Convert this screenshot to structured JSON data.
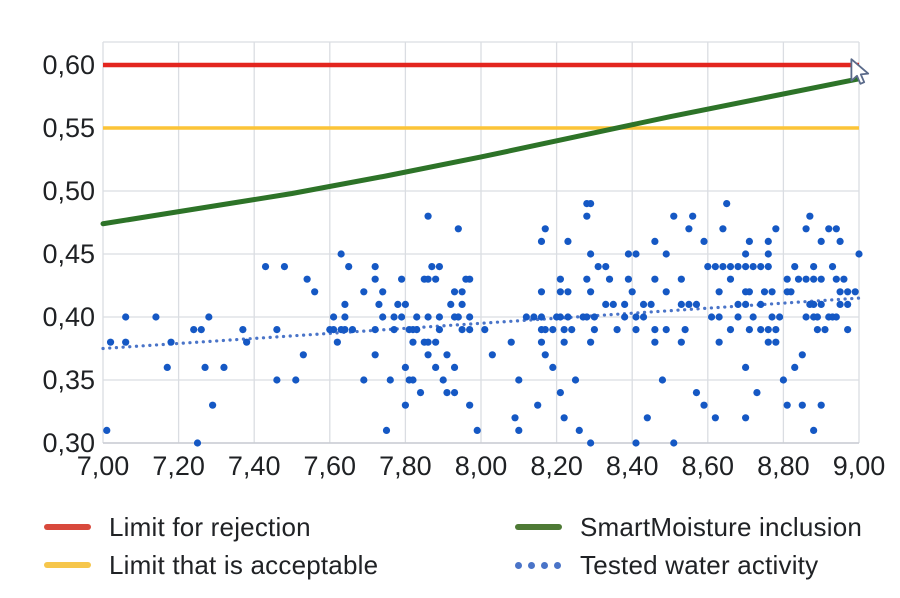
{
  "chart_data": {
    "type": "scatter",
    "title": "",
    "xlabel": "",
    "ylabel": "",
    "grid": true,
    "x_axis": {
      "min": 7.0,
      "max": 9.0,
      "tick_step": 0.2,
      "tick_values": [
        7.0,
        7.2,
        7.4,
        7.6,
        7.8,
        8.0,
        8.2,
        8.4,
        8.6,
        8.8,
        9.0
      ],
      "tick_labels": [
        "7,00",
        "7,20",
        "7,40",
        "7,60",
        "7,80",
        "8,00",
        "8,20",
        "8,40",
        "8,60",
        "8,80",
        "9,00"
      ]
    },
    "y_axis": {
      "min": 0.3,
      "max": 0.62,
      "tick_step": 0.05,
      "tick_values": [
        0.3,
        0.35,
        0.4,
        0.45,
        0.5,
        0.55,
        0.6
      ],
      "tick_labels": [
        "0,30",
        "0,35",
        "0,40",
        "0,45",
        "0,50",
        "0,55",
        "0,60"
      ]
    },
    "series": [
      {
        "name": "Limit for rejection",
        "type": "hline",
        "value": 0.6,
        "color": "#e3261f",
        "stroke_width": 4.5
      },
      {
        "name": "Limit that is acceptable",
        "type": "hline",
        "value": 0.55,
        "color": "#fcc437",
        "stroke_width": 3.5
      },
      {
        "name": "SmartMoisture inclusion",
        "type": "line",
        "color": "#2d7328",
        "stroke_width": 5,
        "points": [
          [
            7.0,
            0.474
          ],
          [
            7.25,
            0.486
          ],
          [
            7.5,
            0.498
          ],
          [
            7.75,
            0.512
          ],
          [
            8.0,
            0.527
          ],
          [
            8.25,
            0.543
          ],
          [
            8.5,
            0.559
          ],
          [
            8.75,
            0.574
          ],
          [
            9.0,
            0.589
          ]
        ]
      },
      {
        "name": "Tested water activity (trend line)",
        "type": "dotted-line",
        "color": "#4a74c8",
        "stroke_width": 3.2,
        "points": [
          [
            7.0,
            0.375
          ],
          [
            9.0,
            0.415
          ]
        ]
      },
      {
        "name": "Tested water activity",
        "type": "scatter",
        "color": "#1558c4",
        "marker_radius": 3.6,
        "points": [
          [
            7.43,
            0.44
          ],
          [
            7.48,
            0.44
          ],
          [
            7.06,
            0.4
          ],
          [
            7.14,
            0.4
          ],
          [
            7.28,
            0.4
          ],
          [
            7.24,
            0.39
          ],
          [
            7.26,
            0.39
          ],
          [
            7.37,
            0.39
          ],
          [
            7.46,
            0.39
          ],
          [
            7.02,
            0.38
          ],
          [
            7.06,
            0.38
          ],
          [
            7.18,
            0.38
          ],
          [
            7.38,
            0.38
          ],
          [
            7.17,
            0.36
          ],
          [
            7.27,
            0.36
          ],
          [
            7.32,
            0.36
          ],
          [
            7.46,
            0.35
          ],
          [
            7.29,
            0.33
          ],
          [
            7.01,
            0.31
          ],
          [
            7.25,
            0.3
          ],
          [
            7.86,
            0.48
          ],
          [
            7.94,
            0.47
          ],
          [
            7.63,
            0.45
          ],
          [
            7.65,
            0.44
          ],
          [
            7.72,
            0.44
          ],
          [
            7.87,
            0.44
          ],
          [
            7.89,
            0.44
          ],
          [
            7.54,
            0.43
          ],
          [
            7.72,
            0.43
          ],
          [
            7.79,
            0.43
          ],
          [
            7.85,
            0.43
          ],
          [
            7.86,
            0.43
          ],
          [
            7.88,
            0.43
          ],
          [
            7.96,
            0.43
          ],
          [
            7.97,
            0.43
          ],
          [
            7.56,
            0.42
          ],
          [
            7.69,
            0.42
          ],
          [
            7.74,
            0.42
          ],
          [
            7.93,
            0.42
          ],
          [
            7.95,
            0.42
          ],
          [
            7.64,
            0.41
          ],
          [
            7.73,
            0.41
          ],
          [
            7.78,
            0.41
          ],
          [
            7.8,
            0.41
          ],
          [
            7.92,
            0.41
          ],
          [
            7.95,
            0.41
          ],
          [
            7.61,
            0.4
          ],
          [
            7.64,
            0.4
          ],
          [
            7.74,
            0.4
          ],
          [
            7.77,
            0.4
          ],
          [
            7.79,
            0.4
          ],
          [
            7.83,
            0.4
          ],
          [
            7.86,
            0.4
          ],
          [
            7.89,
            0.4
          ],
          [
            7.93,
            0.4
          ],
          [
            7.94,
            0.4
          ],
          [
            7.97,
            0.4
          ],
          [
            7.6,
            0.39
          ],
          [
            7.61,
            0.39
          ],
          [
            7.63,
            0.39
          ],
          [
            7.64,
            0.39
          ],
          [
            7.66,
            0.39
          ],
          [
            7.72,
            0.39
          ],
          [
            7.77,
            0.39
          ],
          [
            7.81,
            0.39
          ],
          [
            7.82,
            0.39
          ],
          [
            7.83,
            0.39
          ],
          [
            7.89,
            0.39
          ],
          [
            7.95,
            0.39
          ],
          [
            7.97,
            0.39
          ],
          [
            7.62,
            0.38
          ],
          [
            7.82,
            0.38
          ],
          [
            7.85,
            0.38
          ],
          [
            7.86,
            0.38
          ],
          [
            7.88,
            0.38
          ],
          [
            7.53,
            0.37
          ],
          [
            7.72,
            0.37
          ],
          [
            7.86,
            0.37
          ],
          [
            7.91,
            0.37
          ],
          [
            7.8,
            0.36
          ],
          [
            7.88,
            0.36
          ],
          [
            7.93,
            0.36
          ],
          [
            7.51,
            0.35
          ],
          [
            7.69,
            0.35
          ],
          [
            7.76,
            0.35
          ],
          [
            7.81,
            0.35
          ],
          [
            7.82,
            0.35
          ],
          [
            7.9,
            0.35
          ],
          [
            7.84,
            0.34
          ],
          [
            7.91,
            0.34
          ],
          [
            7.93,
            0.34
          ],
          [
            7.8,
            0.33
          ],
          [
            7.97,
            0.33
          ],
          [
            7.75,
            0.31
          ],
          [
            7.99,
            0.31
          ],
          [
            8.28,
            0.49
          ],
          [
            8.29,
            0.49
          ],
          [
            8.28,
            0.48
          ],
          [
            8.17,
            0.47
          ],
          [
            8.16,
            0.46
          ],
          [
            8.23,
            0.46
          ],
          [
            8.46,
            0.46
          ],
          [
            8.29,
            0.45
          ],
          [
            8.39,
            0.45
          ],
          [
            8.41,
            0.45
          ],
          [
            8.49,
            0.45
          ],
          [
            8.31,
            0.44
          ],
          [
            8.33,
            0.44
          ],
          [
            8.21,
            0.43
          ],
          [
            8.28,
            0.43
          ],
          [
            8.34,
            0.43
          ],
          [
            8.39,
            0.43
          ],
          [
            8.46,
            0.43
          ],
          [
            8.16,
            0.42
          ],
          [
            8.21,
            0.42
          ],
          [
            8.23,
            0.42
          ],
          [
            8.29,
            0.42
          ],
          [
            8.4,
            0.42
          ],
          [
            8.49,
            0.42
          ],
          [
            8.33,
            0.41
          ],
          [
            8.35,
            0.41
          ],
          [
            8.38,
            0.41
          ],
          [
            8.43,
            0.41
          ],
          [
            8.45,
            0.41
          ],
          [
            8.12,
            0.4
          ],
          [
            8.14,
            0.4
          ],
          [
            8.16,
            0.4
          ],
          [
            8.2,
            0.4
          ],
          [
            8.21,
            0.4
          ],
          [
            8.23,
            0.4
          ],
          [
            8.27,
            0.4
          ],
          [
            8.28,
            0.4
          ],
          [
            8.3,
            0.4
          ],
          [
            8.38,
            0.4
          ],
          [
            8.41,
            0.4
          ],
          [
            8.43,
            0.4
          ],
          [
            8.01,
            0.39
          ],
          [
            8.16,
            0.39
          ],
          [
            8.17,
            0.39
          ],
          [
            8.19,
            0.39
          ],
          [
            8.22,
            0.39
          ],
          [
            8.24,
            0.39
          ],
          [
            8.3,
            0.39
          ],
          [
            8.36,
            0.39
          ],
          [
            8.41,
            0.39
          ],
          [
            8.46,
            0.39
          ],
          [
            8.49,
            0.39
          ],
          [
            8.08,
            0.38
          ],
          [
            8.16,
            0.38
          ],
          [
            8.22,
            0.38
          ],
          [
            8.29,
            0.38
          ],
          [
            8.46,
            0.38
          ],
          [
            8.03,
            0.37
          ],
          [
            8.17,
            0.37
          ],
          [
            8.19,
            0.36
          ],
          [
            8.1,
            0.35
          ],
          [
            8.25,
            0.35
          ],
          [
            8.48,
            0.35
          ],
          [
            8.21,
            0.34
          ],
          [
            8.15,
            0.33
          ],
          [
            8.09,
            0.32
          ],
          [
            8.22,
            0.32
          ],
          [
            8.44,
            0.32
          ],
          [
            8.1,
            0.31
          ],
          [
            8.26,
            0.31
          ],
          [
            8.29,
            0.3
          ],
          [
            8.41,
            0.3
          ],
          [
            8.65,
            0.49
          ],
          [
            8.51,
            0.48
          ],
          [
            8.56,
            0.48
          ],
          [
            8.87,
            0.48
          ],
          [
            8.55,
            0.47
          ],
          [
            8.64,
            0.47
          ],
          [
            8.78,
            0.47
          ],
          [
            8.86,
            0.47
          ],
          [
            8.92,
            0.47
          ],
          [
            8.94,
            0.47
          ],
          [
            8.59,
            0.46
          ],
          [
            8.71,
            0.46
          ],
          [
            8.76,
            0.46
          ],
          [
            8.9,
            0.46
          ],
          [
            8.95,
            0.46
          ],
          [
            8.7,
            0.45
          ],
          [
            8.76,
            0.45
          ],
          [
            9.0,
            0.45
          ],
          [
            8.6,
            0.44
          ],
          [
            8.62,
            0.44
          ],
          [
            8.64,
            0.44
          ],
          [
            8.66,
            0.44
          ],
          [
            8.68,
            0.44
          ],
          [
            8.7,
            0.44
          ],
          [
            8.72,
            0.44
          ],
          [
            8.74,
            0.44
          ],
          [
            8.76,
            0.44
          ],
          [
            8.83,
            0.44
          ],
          [
            8.88,
            0.44
          ],
          [
            8.93,
            0.44
          ],
          [
            8.53,
            0.43
          ],
          [
            8.66,
            0.43
          ],
          [
            8.81,
            0.43
          ],
          [
            8.84,
            0.43
          ],
          [
            8.86,
            0.43
          ],
          [
            8.88,
            0.43
          ],
          [
            8.9,
            0.43
          ],
          [
            8.94,
            0.43
          ],
          [
            8.96,
            0.43
          ],
          [
            8.63,
            0.42
          ],
          [
            8.7,
            0.42
          ],
          [
            8.71,
            0.42
          ],
          [
            8.75,
            0.42
          ],
          [
            8.77,
            0.42
          ],
          [
            8.81,
            0.42
          ],
          [
            8.82,
            0.42
          ],
          [
            8.95,
            0.42
          ],
          [
            8.97,
            0.42
          ],
          [
            8.99,
            0.42
          ],
          [
            8.53,
            0.41
          ],
          [
            8.55,
            0.41
          ],
          [
            8.57,
            0.41
          ],
          [
            8.68,
            0.41
          ],
          [
            8.7,
            0.41
          ],
          [
            8.74,
            0.41
          ],
          [
            8.87,
            0.41
          ],
          [
            8.88,
            0.41
          ],
          [
            8.9,
            0.41
          ],
          [
            8.95,
            0.41
          ],
          [
            8.97,
            0.41
          ],
          [
            8.61,
            0.4
          ],
          [
            8.63,
            0.4
          ],
          [
            8.68,
            0.4
          ],
          [
            8.72,
            0.4
          ],
          [
            8.77,
            0.4
          ],
          [
            8.79,
            0.4
          ],
          [
            8.86,
            0.4
          ],
          [
            8.88,
            0.4
          ],
          [
            8.89,
            0.4
          ],
          [
            8.92,
            0.4
          ],
          [
            8.93,
            0.4
          ],
          [
            8.94,
            0.4
          ],
          [
            8.54,
            0.39
          ],
          [
            8.66,
            0.39
          ],
          [
            8.71,
            0.39
          ],
          [
            8.74,
            0.39
          ],
          [
            8.76,
            0.39
          ],
          [
            8.78,
            0.39
          ],
          [
            8.89,
            0.39
          ],
          [
            8.91,
            0.39
          ],
          [
            8.97,
            0.39
          ],
          [
            8.53,
            0.38
          ],
          [
            8.63,
            0.38
          ],
          [
            8.76,
            0.38
          ],
          [
            8.78,
            0.38
          ],
          [
            8.85,
            0.37
          ],
          [
            8.7,
            0.36
          ],
          [
            8.83,
            0.36
          ],
          [
            8.8,
            0.35
          ],
          [
            8.57,
            0.34
          ],
          [
            8.73,
            0.34
          ],
          [
            8.59,
            0.33
          ],
          [
            8.81,
            0.33
          ],
          [
            8.85,
            0.33
          ],
          [
            8.9,
            0.33
          ],
          [
            8.62,
            0.32
          ],
          [
            8.7,
            0.32
          ],
          [
            8.88,
            0.31
          ],
          [
            8.51,
            0.3
          ]
        ]
      }
    ],
    "legend_position": "bottom"
  },
  "legend": {
    "items": [
      {
        "label": "Limit for rejection",
        "style": "line",
        "color": "#d8493c"
      },
      {
        "label": "Limit that is acceptable",
        "style": "line",
        "color": "#f6c64b"
      },
      {
        "label": "SmartMoisture inclusion",
        "style": "line",
        "color": "#4e7a35"
      },
      {
        "label": "Tested water activity",
        "style": "dots",
        "color": "#4a74c8"
      }
    ]
  },
  "icons": {
    "cursor": "mouse-pointer-icon"
  },
  "colors": {
    "grid": "#dadde2",
    "axis": "#c9ccd2",
    "tick_text": "#1f2124",
    "background": "#ffffff"
  }
}
